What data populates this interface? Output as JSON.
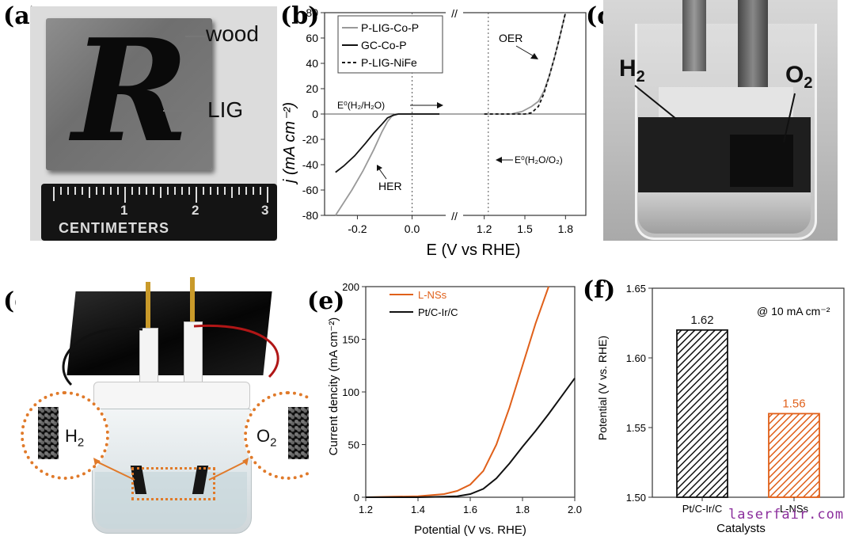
{
  "panels": {
    "a": {
      "label": "(a)",
      "wood_label": "wood",
      "lig_label": "LIG",
      "ruler_unit": "CENTIMETERS",
      "ruler_ticks": [
        "1",
        "2",
        "3"
      ],
      "logo_glyph": "R"
    },
    "b": {
      "label": "(b)"
    },
    "c": {
      "label": "(c)",
      "h2_label": "H",
      "h2_sub": "2",
      "o2_label": "O",
      "o2_sub": "2"
    },
    "d": {
      "label": "(d)",
      "h2_label": "H",
      "h2_sub": "2",
      "o2_label": "O",
      "o2_sub": "2"
    },
    "e": {
      "label": "(e)"
    },
    "f": {
      "label": "(f)"
    }
  },
  "watermark": "laserfair.com",
  "colors": {
    "orange": "#e0601a",
    "black": "#111111",
    "gray": "#999999",
    "dotted_orange": "#e07a2a"
  },
  "chart_data": [
    {
      "id": "b",
      "type": "line",
      "xlabel": "E (V vs RHE)",
      "ylabel": "j (mA cm⁻²)",
      "ylim": [
        -80,
        80
      ],
      "y_ticks": [
        "-80",
        "-60",
        "-40",
        "-20",
        "0",
        "20",
        "40",
        "60",
        "80"
      ],
      "x_ticks_left": [
        "-0.2",
        "0.0"
      ],
      "x_ticks_right": [
        "1.2",
        "1.5",
        "1.8"
      ],
      "axis_break": "//",
      "legend": {
        "placement": "top-left",
        "entries": [
          {
            "name": "P-LIG-Co-P",
            "color": "#999999",
            "dash": "solid"
          },
          {
            "name": "GC-Co-P",
            "color": "#111111",
            "dash": "solid"
          },
          {
            "name": "P-LIG-NiFe",
            "color": "#111111",
            "dash": "dashed"
          }
        ]
      },
      "annotations": {
        "her_eq": "E⁰(H₂/H₂O)",
        "oer_eq": "E⁰(H₂O/O₂)",
        "oer": "OER",
        "her": "HER"
      },
      "series": [
        {
          "name": "P-LIG-Co-P",
          "x": [
            -0.28,
            -0.22,
            -0.18,
            -0.14,
            -0.11,
            -0.09,
            -0.075,
            -0.06,
            -0.03,
            0.0,
            0.1
          ],
          "y": [
            -80,
            -60,
            -45,
            -28,
            -14,
            -6,
            -2,
            0,
            0,
            0,
            0
          ]
        },
        {
          "name": "GC-Co-P",
          "x": [
            -0.28,
            -0.25,
            -0.21,
            -0.17,
            -0.14,
            -0.11,
            -0.09,
            -0.07,
            -0.05,
            0.0,
            0.1
          ],
          "y": [
            -46,
            -41,
            -33,
            -23,
            -15,
            -8,
            -3,
            -1,
            0,
            0,
            0
          ]
        },
        {
          "name": "P-LIG-Co-P OER",
          "x": [
            1.2,
            1.4,
            1.48,
            1.55,
            1.6,
            1.64,
            1.68,
            1.72,
            1.76,
            1.8
          ],
          "y": [
            0,
            0,
            2,
            6,
            10,
            18,
            30,
            45,
            62,
            80
          ]
        },
        {
          "name": "P-LIG-NiFe OER",
          "x": [
            1.2,
            1.4,
            1.5,
            1.55,
            1.6,
            1.64,
            1.68,
            1.72,
            1.76,
            1.8
          ],
          "y": [
            0,
            0,
            0,
            1,
            6,
            16,
            30,
            45,
            62,
            80
          ]
        }
      ]
    },
    {
      "id": "e",
      "type": "line",
      "xlabel": "Potential (V vs. RHE)",
      "ylabel": "Current dencity (mA cm⁻²)",
      "xlim": [
        1.2,
        2.0
      ],
      "ylim": [
        0,
        200
      ],
      "x_ticks": [
        "1.2",
        "1.4",
        "1.6",
        "1.8",
        "2.0"
      ],
      "y_ticks": [
        "0",
        "50",
        "100",
        "150",
        "200"
      ],
      "legend": {
        "placement": "top-left"
      },
      "series": [
        {
          "name": "L-NSs",
          "color": "#e0601a",
          "x": [
            1.2,
            1.3,
            1.4,
            1.5,
            1.55,
            1.6,
            1.65,
            1.7,
            1.75,
            1.8,
            1.85,
            1.9
          ],
          "y": [
            0,
            0.5,
            1,
            3,
            6,
            12,
            25,
            50,
            85,
            125,
            165,
            200
          ]
        },
        {
          "name": "Pt/C-Ir/C",
          "color": "#111111",
          "x": [
            1.2,
            1.4,
            1.5,
            1.55,
            1.6,
            1.65,
            1.7,
            1.75,
            1.8,
            1.85,
            1.9,
            1.95,
            2.0
          ],
          "y": [
            0,
            0,
            0.5,
            1,
            3,
            8,
            18,
            32,
            48,
            63,
            79,
            96,
            113
          ]
        }
      ]
    },
    {
      "id": "f",
      "type": "bar",
      "xlabel": "Catalysts",
      "ylabel": "Potential (V vs. RHE)",
      "ylim": [
        1.5,
        1.65
      ],
      "y_ticks": [
        "1.50",
        "1.55",
        "1.60",
        "1.65"
      ],
      "annotation": "@ 10 mA cm⁻²",
      "categories": [
        "Pt/C-Ir/C",
        "L-NSs"
      ],
      "values": [
        1.62,
        1.56
      ],
      "value_labels": [
        "1.62",
        "1.56"
      ],
      "bar_colors": [
        "#111111",
        "#e0601a"
      ]
    }
  ]
}
